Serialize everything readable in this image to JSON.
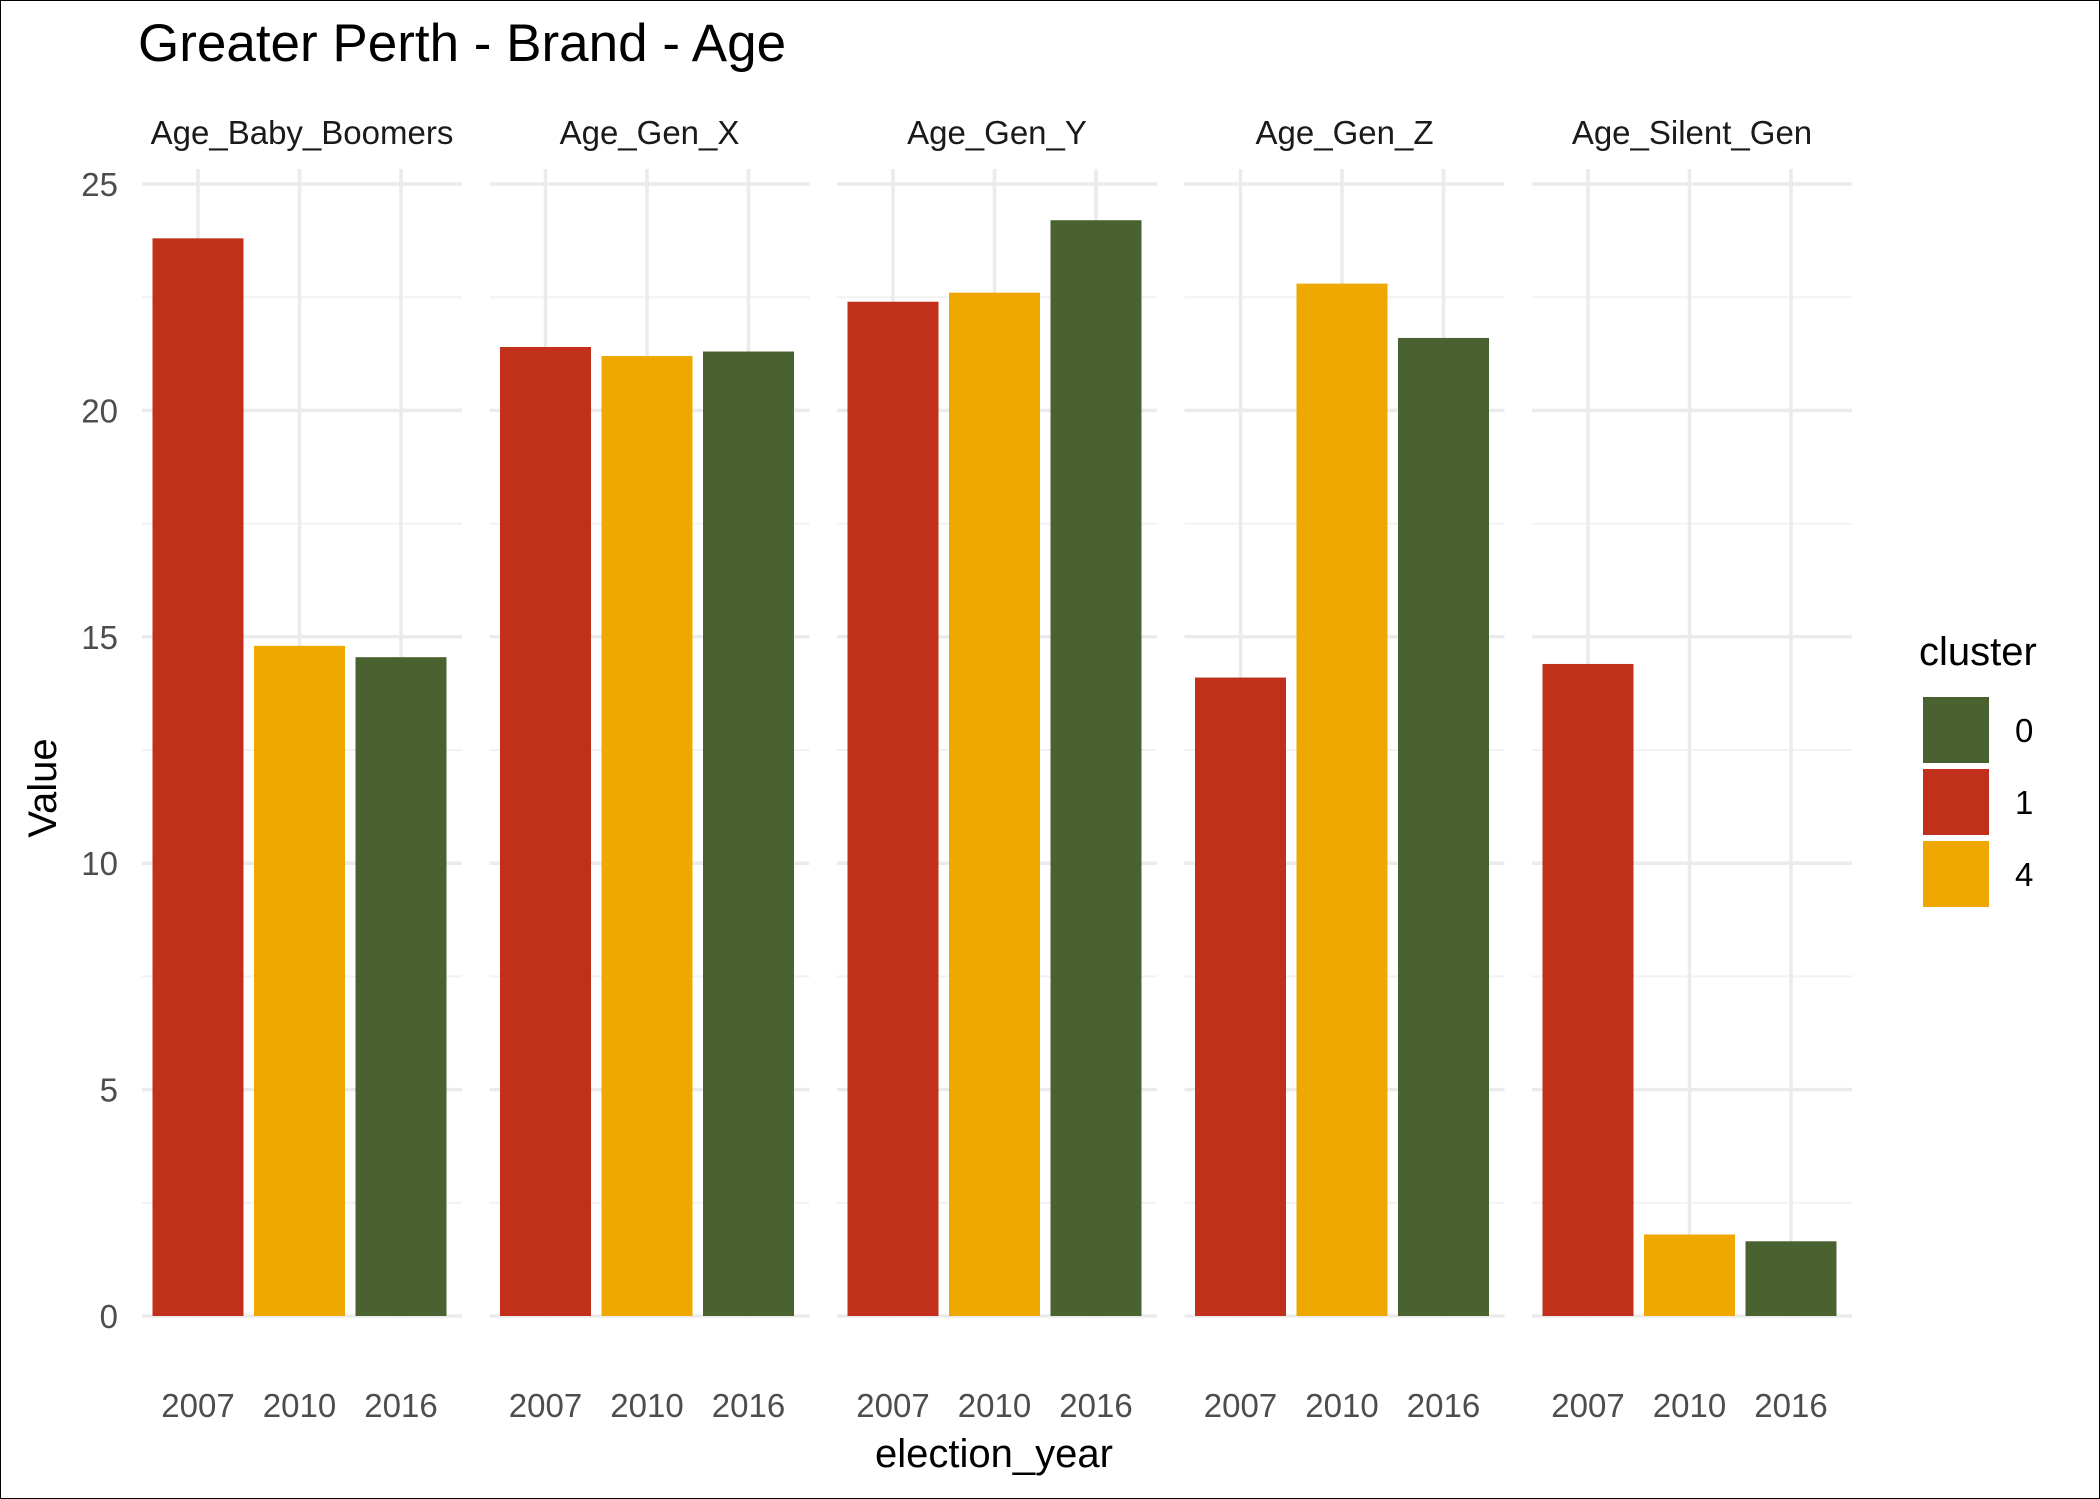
{
  "chart_data": {
    "type": "bar",
    "title": "Greater Perth - Brand - Age",
    "xlabel": "election_year",
    "ylabel": "Value",
    "ylim": [
      0,
      25
    ],
    "yticks": [
      "0",
      "5",
      "10",
      "15",
      "20",
      "25"
    ],
    "grid": true,
    "legend": {
      "title": "cluster",
      "position": "right",
      "entries": [
        {
          "label": "0",
          "color": "#4a6130"
        },
        {
          "label": "1",
          "color": "#c0301a"
        },
        {
          "label": "4",
          "color": "#eea801"
        }
      ]
    },
    "categories": [
      "2007",
      "2010",
      "2016"
    ],
    "panels": [
      {
        "name": "Age_Baby_Boomers",
        "bars": [
          {
            "x": "2007",
            "value": 23.8,
            "cluster": "1"
          },
          {
            "x": "2010",
            "value": 14.8,
            "cluster": "4"
          },
          {
            "x": "2016",
            "value": 14.55,
            "cluster": "0"
          }
        ]
      },
      {
        "name": "Age_Gen_X",
        "bars": [
          {
            "x": "2007",
            "value": 21.4,
            "cluster": "1"
          },
          {
            "x": "2010",
            "value": 21.2,
            "cluster": "4"
          },
          {
            "x": "2016",
            "value": 21.3,
            "cluster": "0"
          }
        ]
      },
      {
        "name": "Age_Gen_Y",
        "bars": [
          {
            "x": "2007",
            "value": 22.4,
            "cluster": "1"
          },
          {
            "x": "2010",
            "value": 22.6,
            "cluster": "4"
          },
          {
            "x": "2016",
            "value": 24.2,
            "cluster": "0"
          }
        ]
      },
      {
        "name": "Age_Gen_Z",
        "bars": [
          {
            "x": "2007",
            "value": 14.1,
            "cluster": "1"
          },
          {
            "x": "2010",
            "value": 22.8,
            "cluster": "4"
          },
          {
            "x": "2016",
            "value": 21.6,
            "cluster": "0"
          }
        ]
      },
      {
        "name": "Age_Silent_Gen",
        "bars": [
          {
            "x": "2007",
            "value": 14.4,
            "cluster": "1"
          },
          {
            "x": "2010",
            "value": 1.8,
            "cluster": "4"
          },
          {
            "x": "2016",
            "value": 1.65,
            "cluster": "0"
          }
        ]
      }
    ]
  }
}
